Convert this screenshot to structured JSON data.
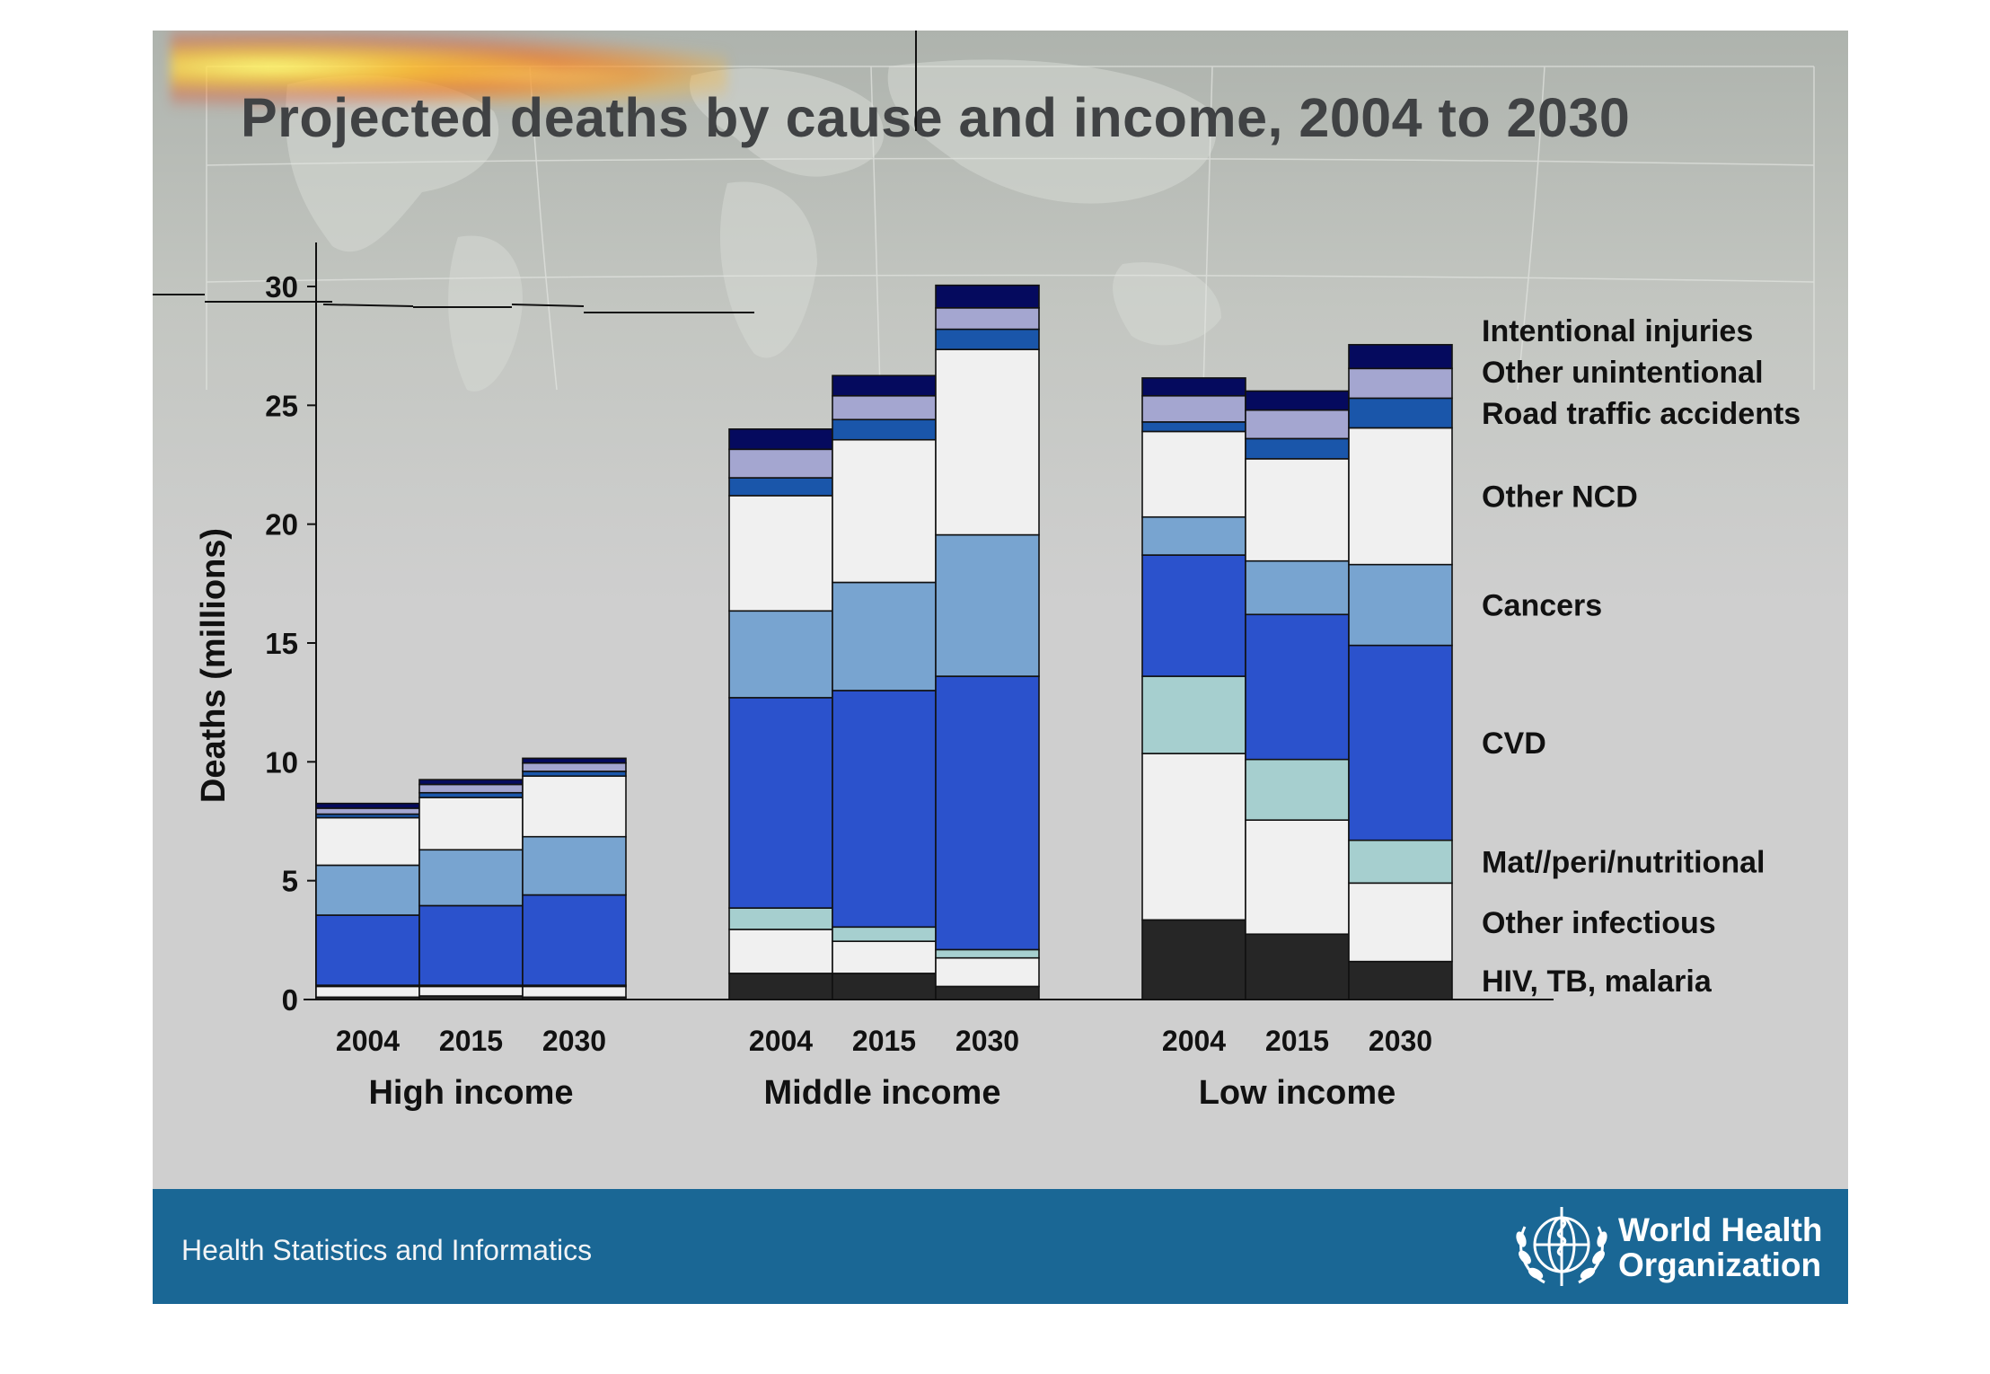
{
  "title": "Projected deaths by cause and income, 2004 to 2030",
  "footer": {
    "left_text": "Health Statistics and Informatics",
    "org_line1": "World Health",
    "org_line2": "Organization"
  },
  "chart_data": {
    "type": "bar",
    "stacked": true,
    "title": "Projected deaths by cause and income, 2004 to 2030",
    "ylabel": "Deaths (millions)",
    "xlabel": "",
    "ylim": [
      0,
      30
    ],
    "yticks": [
      0,
      5,
      10,
      15,
      20,
      25,
      30
    ],
    "grid": false,
    "legend_placement": "right, aligned with last bar",
    "groups": [
      {
        "name": "High income",
        "years": [
          "2004",
          "2015",
          "2030"
        ]
      },
      {
        "name": "Middle income",
        "years": [
          "2004",
          "2015",
          "2030"
        ]
      },
      {
        "name": "Low income",
        "years": [
          "2004",
          "2015",
          "2030"
        ]
      }
    ],
    "categories": [
      "High income 2004",
      "High income 2015",
      "High income 2030",
      "Middle income 2004",
      "Middle income 2015",
      "Middle income 2030",
      "Low income 2004",
      "Low income 2015",
      "Low income 2030"
    ],
    "series": [
      {
        "name": "HIV, TB, malaria",
        "color": "#262626",
        "values": [
          0.1,
          0.15,
          0.1,
          1.1,
          1.1,
          0.55,
          3.35,
          2.75,
          1.6
        ]
      },
      {
        "name": "Other infectious",
        "color": "#f0f0f0",
        "values": [
          0.45,
          0.4,
          0.45,
          1.85,
          1.35,
          1.2,
          7.0,
          4.8,
          3.3
        ]
      },
      {
        "name": "Mat//peri/nutritional",
        "color": "#a6cfcf",
        "values": [
          0.05,
          0.05,
          0.05,
          0.9,
          0.6,
          0.35,
          3.25,
          2.55,
          1.8
        ]
      },
      {
        "name": "CVD",
        "color": "#2b52cc",
        "values": [
          2.95,
          3.35,
          3.8,
          8.85,
          9.95,
          11.5,
          5.1,
          6.1,
          8.2
        ]
      },
      {
        "name": "Cancers",
        "color": "#78a4d0",
        "values": [
          2.1,
          2.35,
          2.45,
          3.65,
          4.55,
          5.95,
          1.6,
          2.25,
          3.4
        ]
      },
      {
        "name": "Other NCD",
        "color": "#f0f0f0",
        "values": [
          2.0,
          2.2,
          2.55,
          4.85,
          6.0,
          7.8,
          3.6,
          4.3,
          5.75
        ]
      },
      {
        "name": "Road traffic accidents",
        "color": "#1a56aa",
        "values": [
          0.15,
          0.2,
          0.2,
          0.75,
          0.85,
          0.85,
          0.4,
          0.85,
          1.25
        ]
      },
      {
        "name": "Other unintentional",
        "color": "#a4a6d0",
        "values": [
          0.25,
          0.35,
          0.35,
          1.2,
          1.0,
          0.9,
          1.1,
          1.2,
          1.25
        ]
      },
      {
        "name": "Intentional injuries",
        "color": "#050a5e",
        "values": [
          0.2,
          0.2,
          0.2,
          0.85,
          0.85,
          0.95,
          0.75,
          0.8,
          1.0
        ]
      }
    ]
  }
}
